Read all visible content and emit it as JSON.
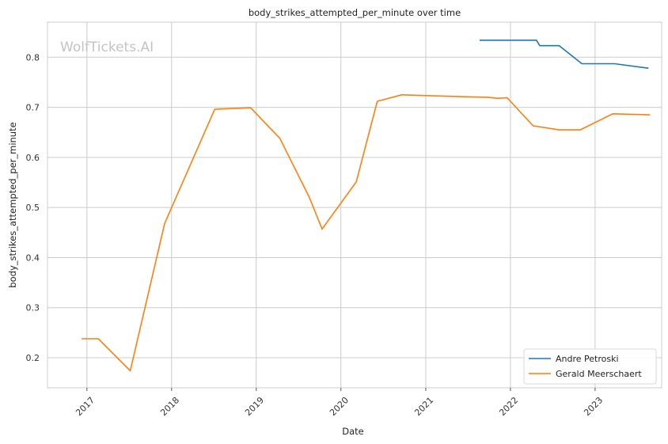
{
  "chart_data": {
    "type": "line",
    "title": "body_strikes_attempted_per_minute over time",
    "xlabel": "Date",
    "ylabel": "body_strikes_attempted_per_minute",
    "watermark": "WolfTickets.AI",
    "x_ticks": [
      "2017",
      "2018",
      "2019",
      "2020",
      "2021",
      "2022",
      "2023"
    ],
    "y_ticks": [
      "0.2",
      "0.3",
      "0.4",
      "0.5",
      "0.6",
      "0.7",
      "0.8"
    ],
    "xlim": [
      "2016-07-15",
      "2023-10-15"
    ],
    "ylim": [
      0.14,
      0.87
    ],
    "grid": true,
    "legend_position": "lower-right",
    "series": [
      {
        "name": "Andre Petroski",
        "color": "#1f77b4",
        "points": [
          {
            "x": "2021-08-21",
            "y": 0.834
          },
          {
            "x": "2022-04-23",
            "y": 0.834
          },
          {
            "x": "2022-05-07",
            "y": 0.823
          },
          {
            "x": "2022-07-30",
            "y": 0.823
          },
          {
            "x": "2022-11-05",
            "y": 0.787
          },
          {
            "x": "2023-03-25",
            "y": 0.787
          },
          {
            "x": "2023-08-19",
            "y": 0.778
          }
        ]
      },
      {
        "name": "Gerald Meerschaert",
        "color": "#ff7f0e",
        "points": [
          {
            "x": "2016-12-09",
            "y": 0.238
          },
          {
            "x": "2017-02-19",
            "y": 0.238
          },
          {
            "x": "2017-07-07",
            "y": 0.174
          },
          {
            "x": "2017-12-02",
            "y": 0.468
          },
          {
            "x": "2018-07-06",
            "y": 0.696
          },
          {
            "x": "2018-12-08",
            "y": 0.699
          },
          {
            "x": "2019-04-13",
            "y": 0.638
          },
          {
            "x": "2019-08-17",
            "y": 0.521
          },
          {
            "x": "2019-10-12",
            "y": 0.457
          },
          {
            "x": "2020-03-07",
            "y": 0.551
          },
          {
            "x": "2020-06-06",
            "y": 0.712
          },
          {
            "x": "2020-09-19",
            "y": 0.725
          },
          {
            "x": "2021-04-10",
            "y": 0.722
          },
          {
            "x": "2021-09-25",
            "y": 0.72
          },
          {
            "x": "2021-11-06",
            "y": 0.718
          },
          {
            "x": "2021-12-18",
            "y": 0.719
          },
          {
            "x": "2022-04-09",
            "y": 0.663
          },
          {
            "x": "2022-07-30",
            "y": 0.655
          },
          {
            "x": "2022-10-29",
            "y": 0.655
          },
          {
            "x": "2023-03-18",
            "y": 0.687
          },
          {
            "x": "2023-08-26",
            "y": 0.685
          }
        ]
      }
    ]
  }
}
